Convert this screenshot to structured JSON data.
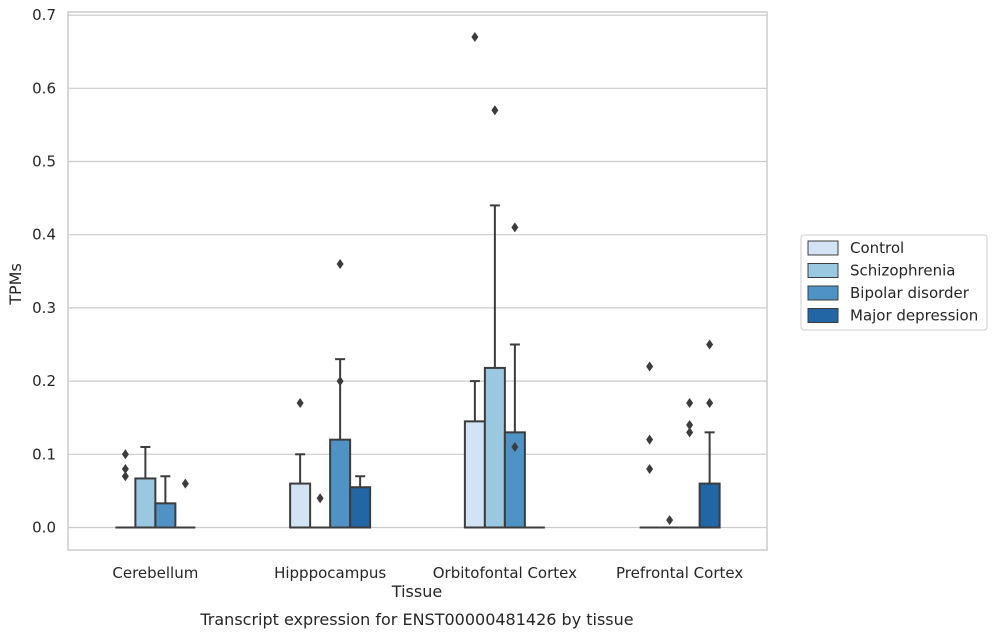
{
  "chart_data": {
    "type": "box",
    "xlabel": "Tissue",
    "ylabel": "TPMs",
    "caption": "Transcript expression for ENST00000481426 by tissue",
    "ylim": [
      -0.032,
      0.705
    ],
    "yticks": [
      "0.0",
      "0.1",
      "0.2",
      "0.3",
      "0.4",
      "0.5",
      "0.6",
      "0.7"
    ],
    "ytick_values": [
      0.0,
      0.1,
      0.2,
      0.3,
      0.4,
      0.5,
      0.6,
      0.7
    ],
    "grid": true,
    "legend_position": "right",
    "categories": [
      "Cerebellum",
      "Hipppocampus",
      "Orbitofontal Cortex",
      "Prefrontal Cortex"
    ],
    "series": [
      {
        "name": "Control",
        "color": "#d2e3f3",
        "boxes": [
          {
            "q1": 0.0,
            "median": 0.0,
            "q3": 0.0,
            "whisker_low": 0.0,
            "whisker_high": 0.0,
            "outliers": [
              0.07,
              0.08,
              0.1
            ]
          },
          {
            "q1": 0.0,
            "median": 0.0,
            "q3": 0.06,
            "whisker_low": 0.0,
            "whisker_high": 0.1,
            "outliers": [
              0.17
            ]
          },
          {
            "q1": 0.0,
            "median": 0.0,
            "q3": 0.145,
            "whisker_low": 0.0,
            "whisker_high": 0.2,
            "outliers": [
              0.67
            ]
          },
          {
            "q1": 0.0,
            "median": 0.0,
            "q3": 0.0,
            "whisker_low": 0.0,
            "whisker_high": 0.0,
            "outliers": [
              0.08,
              0.12,
              0.22
            ]
          }
        ]
      },
      {
        "name": "Schizophrenia",
        "color": "#9ac8e0",
        "boxes": [
          {
            "q1": 0.0,
            "median": 0.0,
            "q3": 0.067,
            "whisker_low": 0.0,
            "whisker_high": 0.11,
            "outliers": []
          },
          {
            "q1": 0.0,
            "median": 0.0,
            "q3": 0.0,
            "whisker_low": 0.0,
            "whisker_high": 0.0,
            "outliers": [
              0.04
            ]
          },
          {
            "q1": 0.0,
            "median": 0.0,
            "q3": 0.218,
            "whisker_low": 0.0,
            "whisker_high": 0.44,
            "outliers": [
              0.57
            ]
          },
          {
            "q1": 0.0,
            "median": 0.0,
            "q3": 0.0,
            "whisker_low": 0.0,
            "whisker_high": 0.0,
            "outliers": [
              0.01
            ]
          }
        ]
      },
      {
        "name": "Bipolar disorder",
        "color": "#4f93c6",
        "boxes": [
          {
            "q1": 0.0,
            "median": 0.0,
            "q3": 0.033,
            "whisker_low": 0.0,
            "whisker_high": 0.07,
            "outliers": []
          },
          {
            "q1": 0.0,
            "median": 0.0,
            "q3": 0.12,
            "whisker_low": 0.0,
            "whisker_high": 0.23,
            "outliers": [
              0.2,
              0.36
            ]
          },
          {
            "q1": 0.0,
            "median": 0.0,
            "q3": 0.13,
            "whisker_low": 0.0,
            "whisker_high": 0.25,
            "outliers": [
              0.11,
              0.41
            ]
          },
          {
            "q1": 0.0,
            "median": 0.0,
            "q3": 0.0,
            "whisker_low": 0.0,
            "whisker_high": 0.0,
            "outliers": [
              0.13,
              0.14,
              0.17
            ]
          }
        ]
      },
      {
        "name": "Major depression",
        "color": "#2266a6",
        "boxes": [
          {
            "q1": 0.0,
            "median": 0.0,
            "q3": 0.0,
            "whisker_low": 0.0,
            "whisker_high": 0.0,
            "outliers": [
              0.06
            ]
          },
          {
            "q1": 0.0,
            "median": 0.0,
            "q3": 0.055,
            "whisker_low": 0.0,
            "whisker_high": 0.07,
            "outliers": []
          },
          {
            "q1": 0.0,
            "median": 0.0,
            "q3": 0.0,
            "whisker_low": 0.0,
            "whisker_high": 0.0,
            "outliers": []
          },
          {
            "q1": 0.0,
            "median": 0.0,
            "q3": 0.06,
            "whisker_low": 0.0,
            "whisker_high": 0.13,
            "outliers": [
              0.17,
              0.25
            ]
          }
        ]
      }
    ]
  }
}
